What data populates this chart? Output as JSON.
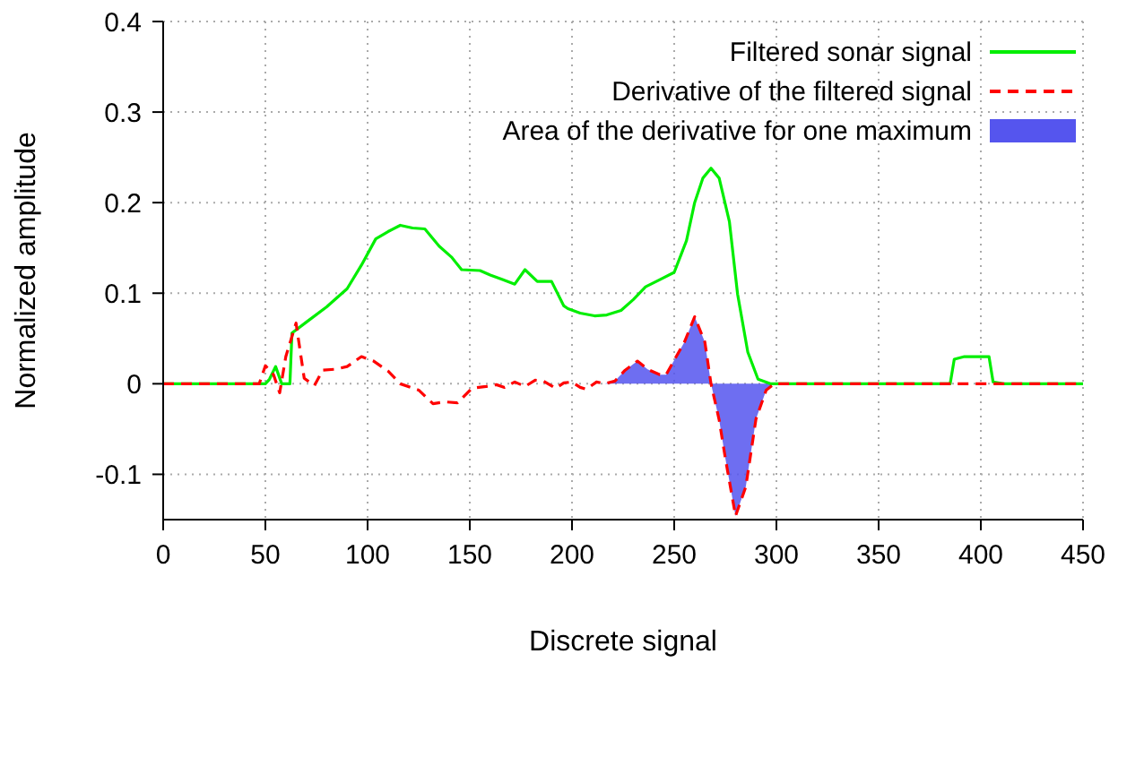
{
  "chart_data": {
    "type": "line",
    "xlabel": "Discrete signal",
    "ylabel": "Normalized amplitude",
    "xlim": [
      0,
      450
    ],
    "xticks": [
      0,
      50,
      100,
      150,
      200,
      250,
      300,
      350,
      400,
      450
    ],
    "ylim": [
      -0.15,
      0.4
    ],
    "yticks": [
      -0.1,
      0,
      0.1,
      0.2,
      0.3,
      0.4
    ],
    "grid": true,
    "legend": "top right",
    "marker": "none",
    "series": [
      {
        "name": "Filtered sonar signal",
        "color": "#00ee00",
        "line_style": "solid",
        "x": [
          0,
          50,
          52,
          55,
          58,
          62,
          63,
          70,
          80,
          90,
          97,
          104,
          110,
          116,
          122,
          128,
          135,
          141,
          146,
          155,
          160,
          166,
          172,
          177,
          183,
          190,
          196,
          198,
          204,
          211,
          217,
          224,
          230,
          236,
          243,
          250,
          256,
          260,
          264,
          268,
          272,
          277,
          281,
          286,
          291,
          297,
          350,
          385,
          387,
          392,
          404,
          406,
          411,
          450
        ],
        "values": [
          0,
          0,
          0.005,
          0.019,
          0,
          0,
          0.056,
          0.068,
          0.085,
          0.105,
          0.131,
          0.16,
          0.168,
          0.175,
          0.172,
          0.171,
          0.152,
          0.14,
          0.126,
          0.125,
          0.12,
          0.115,
          0.11,
          0.126,
          0.113,
          0.113,
          0.086,
          0.083,
          0.078,
          0.075,
          0.076,
          0.081,
          0.093,
          0.107,
          0.115,
          0.123,
          0.158,
          0.2,
          0.227,
          0.238,
          0.227,
          0.179,
          0.099,
          0.035,
          0.005,
          0,
          0,
          0,
          0.027,
          0.03,
          0.03,
          0.002,
          0,
          0
        ]
      },
      {
        "name": "Derivative of the filtered signal",
        "color": "#ff0000",
        "line_style": "dashed",
        "x": [
          0,
          47,
          50,
          54,
          57,
          60,
          65,
          69,
          74,
          78,
          84,
          90,
          97,
          103,
          110,
          116,
          125,
          132,
          138,
          144,
          151,
          158,
          163,
          167,
          172,
          177,
          182,
          186,
          192,
          196,
          200,
          204,
          207,
          212,
          216,
          221,
          226,
          232,
          237,
          243,
          246,
          251,
          255,
          260,
          265,
          268,
          272,
          275,
          280,
          285,
          290,
          295,
          299,
          450
        ],
        "values": [
          0,
          0,
          0.02,
          0.01,
          -0.01,
          0.03,
          0.067,
          0.006,
          -0.002,
          0.015,
          0.016,
          0.019,
          0.03,
          0.025,
          0.014,
          0,
          -0.007,
          -0.022,
          -0.02,
          -0.021,
          -0.005,
          -0.003,
          -0.001,
          -0.004,
          0.002,
          -0.003,
          0.004,
          0.003,
          -0.005,
          0.001,
          0.002,
          -0.004,
          -0.006,
          0.002,
          0,
          0.003,
          0.015,
          0.025,
          0.016,
          0.01,
          0.01,
          0.03,
          0.046,
          0.074,
          0.046,
          0,
          -0.04,
          -0.082,
          -0.146,
          -0.114,
          -0.039,
          -0.007,
          0,
          0
        ]
      },
      {
        "name": "Area of the derivative for one maximum",
        "type": "area",
        "color": "#5555ee",
        "x": [
          216,
          221,
          226,
          232,
          237,
          243,
          246,
          251,
          255,
          260,
          265,
          268,
          272,
          275,
          280,
          285,
          290,
          295,
          299
        ],
        "values": [
          0,
          0.003,
          0.015,
          0.025,
          0.016,
          0.01,
          0.01,
          0.03,
          0.046,
          0.074,
          0.046,
          0,
          -0.04,
          -0.082,
          -0.146,
          -0.114,
          -0.039,
          -0.007,
          0
        ]
      }
    ]
  }
}
